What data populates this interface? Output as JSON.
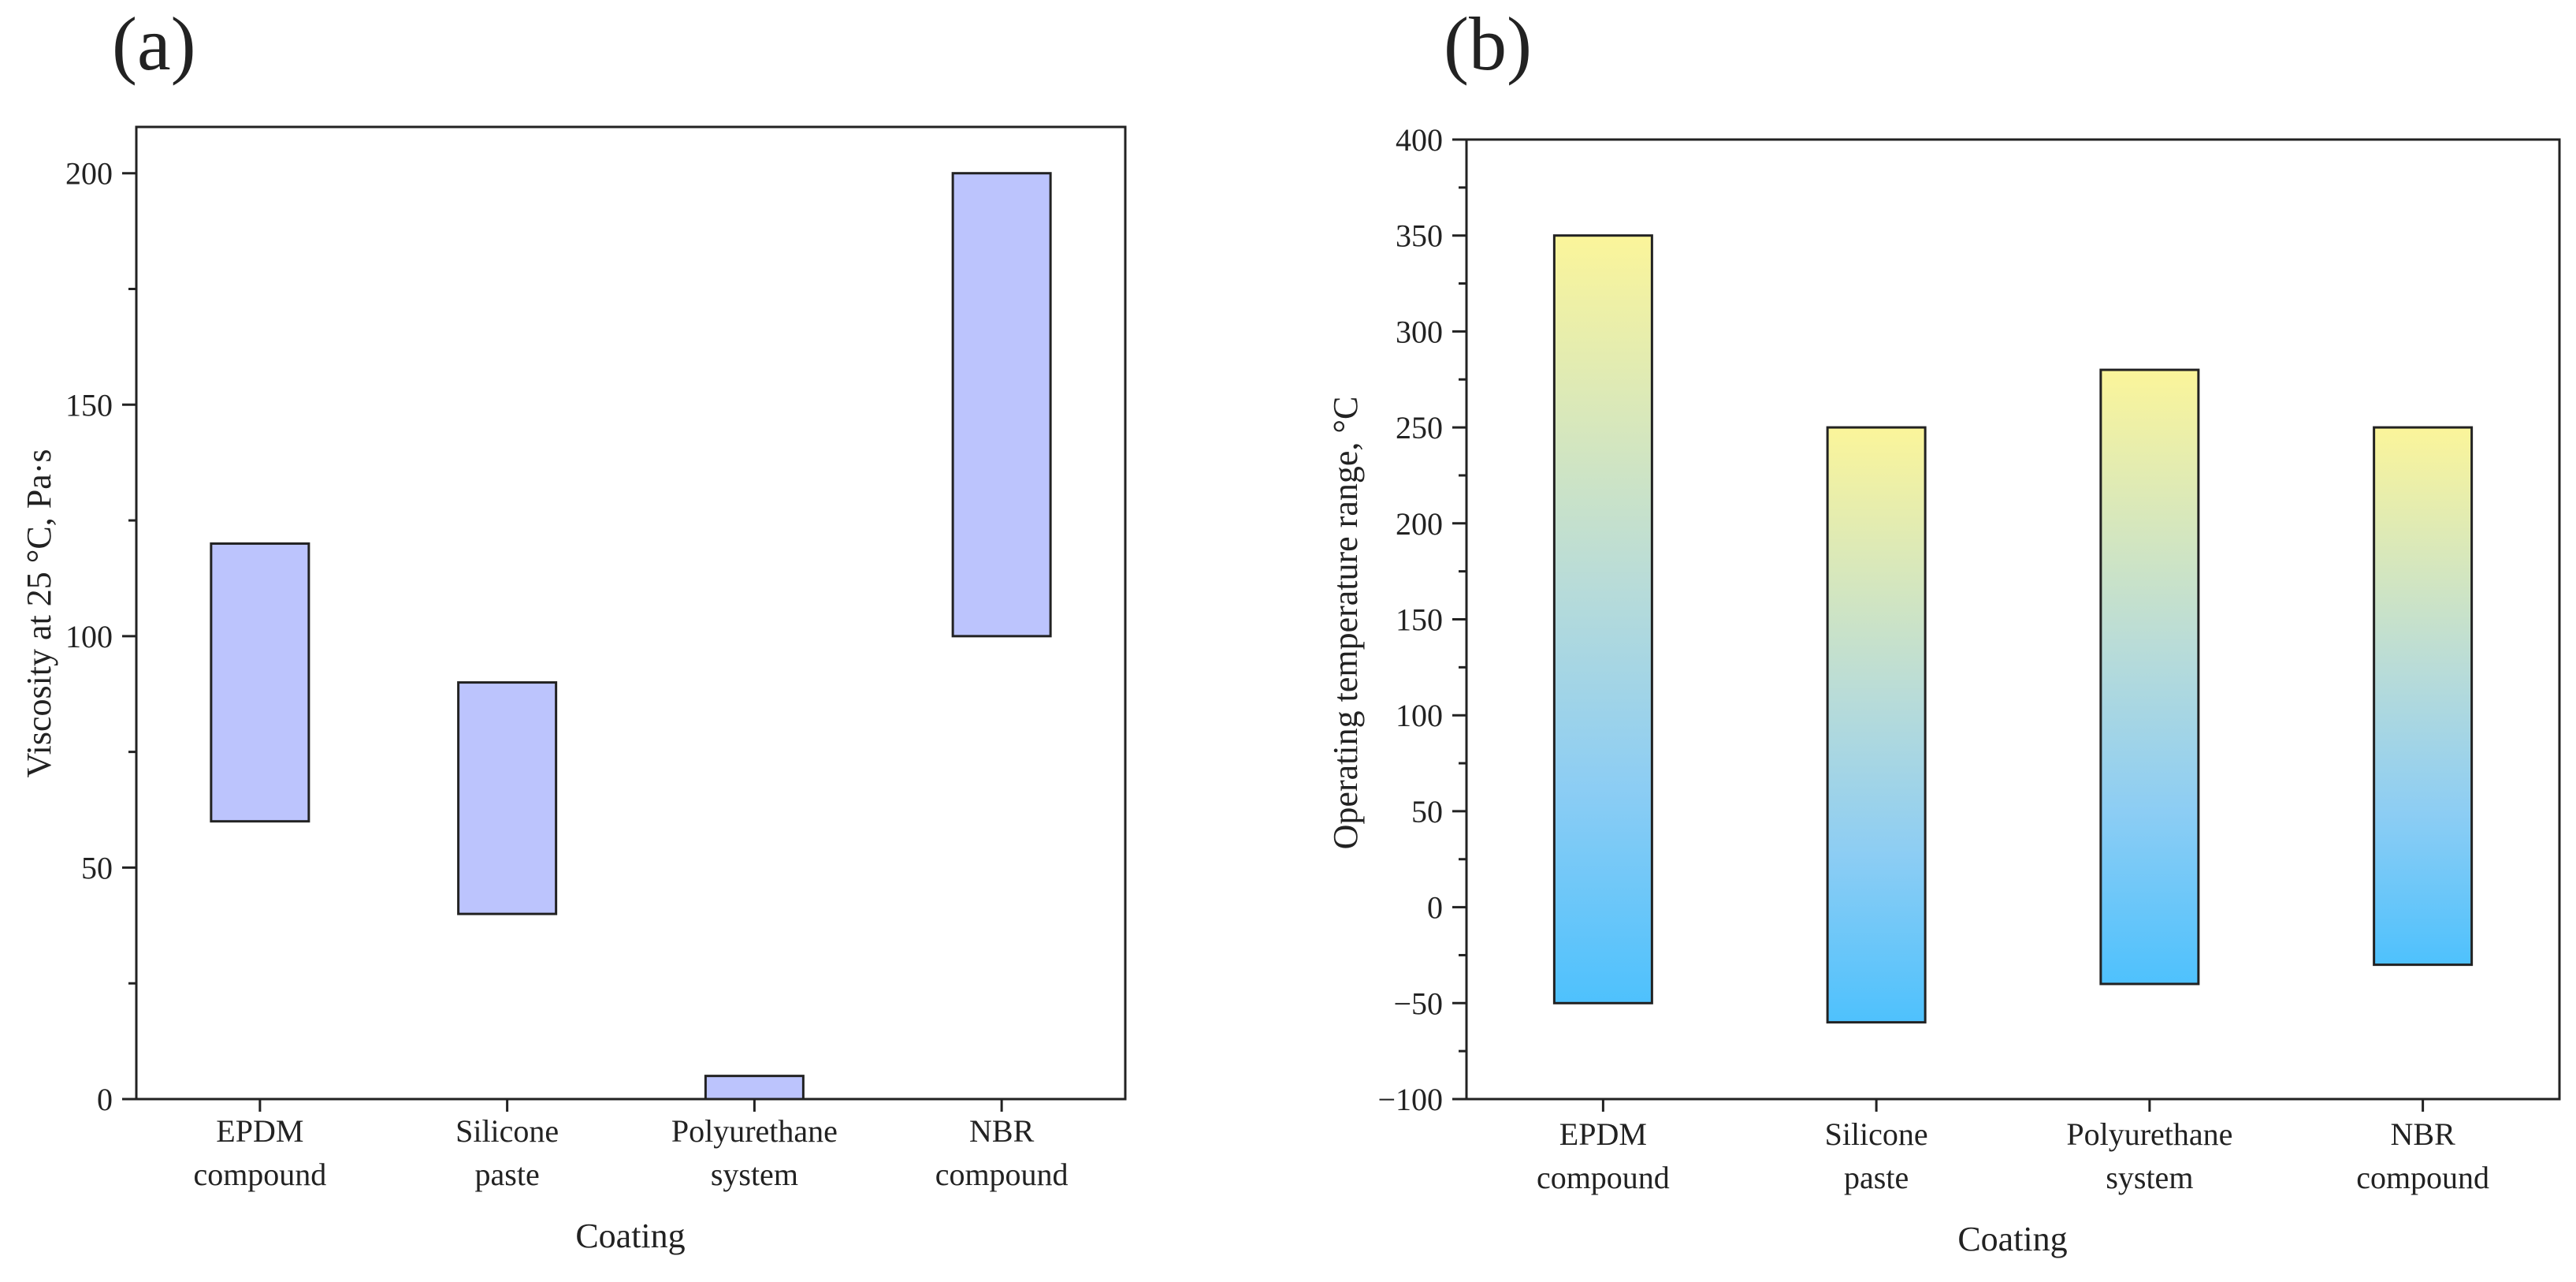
{
  "chart_data": [
    {
      "panel_label": "(a)",
      "type": "bar",
      "bar_style": "floating-range",
      "categories": [
        [
          "EPDM",
          "compound"
        ],
        [
          "Silicone",
          "paste"
        ],
        [
          "Polyurethane",
          "system"
        ],
        [
          "NBR",
          "compound"
        ]
      ],
      "series": [
        {
          "low": [
            60,
            40,
            0,
            100
          ],
          "high": [
            120,
            90,
            5,
            200
          ]
        }
      ],
      "xlabel": "Coating",
      "ylabel": "Viscosity at 25 °C, Pa·s",
      "ylim": [
        0,
        210
      ],
      "yticks": [
        0,
        50,
        100,
        150,
        200
      ],
      "ytick_labels": [
        "0",
        "50",
        "100",
        "150",
        "200"
      ],
      "y_minor_step": 25,
      "fill_color": "#bcc4fd",
      "grid": false
    },
    {
      "panel_label": "(b)",
      "type": "bar",
      "bar_style": "floating-range-gradient",
      "categories": [
        [
          "EPDM",
          "compound"
        ],
        [
          "Silicone",
          "paste"
        ],
        [
          "Polyurethane",
          "system"
        ],
        [
          "NBR",
          "compound"
        ]
      ],
      "series": [
        {
          "low": [
            -50,
            -60,
            -40,
            -30
          ],
          "high": [
            350,
            250,
            280,
            250
          ]
        }
      ],
      "xlabel": "Coating",
      "ylabel": "Operating temperature range, °C",
      "ylim": [
        -100,
        400
      ],
      "yticks": [
        -100,
        -50,
        0,
        50,
        100,
        150,
        200,
        250,
        300,
        350,
        400
      ],
      "ytick_labels": [
        "−100",
        "−50",
        "0",
        "50",
        "100",
        "150",
        "200",
        "250",
        "300",
        "350",
        "400"
      ],
      "y_minor_step": 25,
      "gradient_colors": [
        "#fbf59a",
        "#b9dcd8",
        "#8ccdf4",
        "#4ec1fd"
      ],
      "grid": false
    }
  ]
}
